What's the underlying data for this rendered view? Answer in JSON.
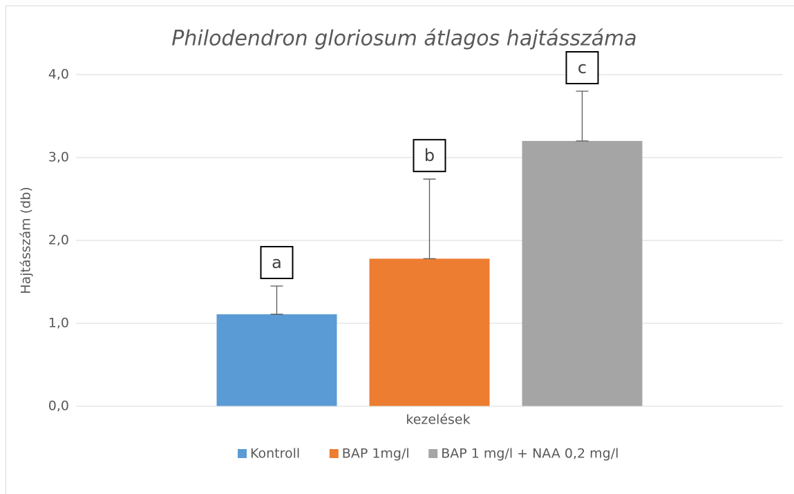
{
  "chart_data": {
    "type": "bar",
    "title": "Philodendron gloriosum átlagos hajtásszáma",
    "ylabel": "Hajtásszám (db)",
    "xlabel": "kezelések",
    "categories": [
      null
    ],
    "series": [
      {
        "name": "Kontroll",
        "color": "#5b9bd5",
        "values": [
          1.11
        ],
        "errors": [
          0.34
        ],
        "annotation": "a"
      },
      {
        "name": "BAP 1mg/l",
        "color": "#ed7d31",
        "values": [
          1.78
        ],
        "errors": [
          0.96
        ],
        "annotation": "b"
      },
      {
        "name": "BAP 1 mg/l + NAA 0,2 mg/l",
        "color": "#a5a5a5",
        "values": [
          3.2
        ],
        "errors": [
          0.6
        ],
        "annotation": "c"
      }
    ],
    "ylim": [
      0,
      4
    ],
    "yticks": [
      {
        "value": 0,
        "label": "0,0"
      },
      {
        "value": 1,
        "label": "1,0"
      },
      {
        "value": 2,
        "label": "2,0"
      },
      {
        "value": 3,
        "label": "3,0"
      },
      {
        "value": 4,
        "label": "4,0"
      }
    ],
    "grid": true,
    "legend": "bottom"
  }
}
